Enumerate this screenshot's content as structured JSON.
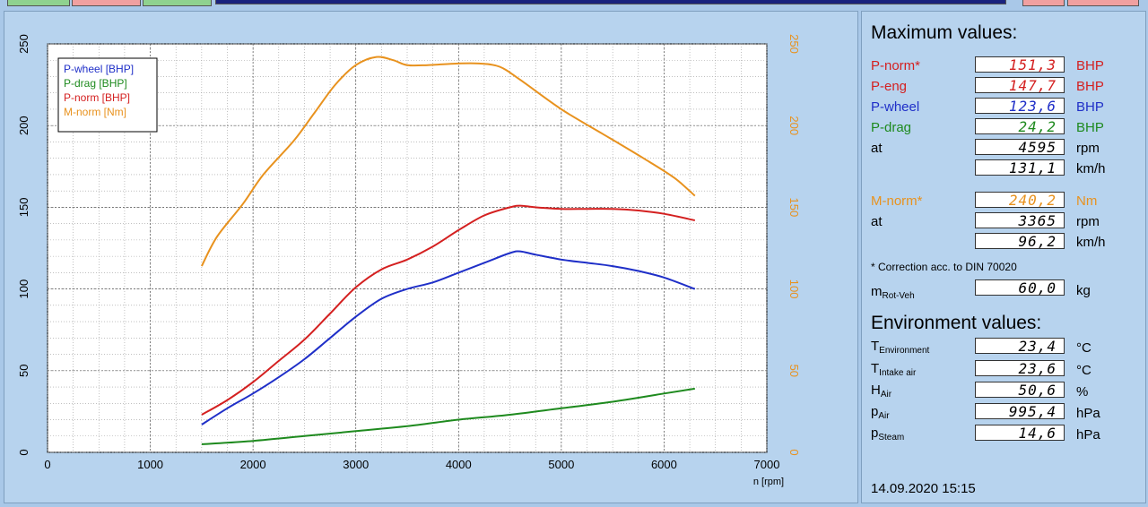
{
  "colors": {
    "wheel": "#1f2fc8",
    "drag": "#1e8a1e",
    "norm": "#d42020",
    "torque": "#e8921e"
  },
  "chart_data": {
    "type": "line",
    "xlabel": "n [rpm]",
    "xlim": [
      0,
      7000
    ],
    "ylim": [
      0,
      250
    ],
    "xticks": [
      "0",
      "1000",
      "2000",
      "3000",
      "4000",
      "5000",
      "6000",
      "7000"
    ],
    "yticks_left": [
      "0",
      "50",
      "100",
      "150",
      "200",
      "250"
    ],
    "yticks_right": [
      "0",
      "50",
      "100",
      "150",
      "200",
      "250"
    ],
    "grid": true,
    "legend_position": "top-left",
    "series": [
      {
        "name": "P-wheel [BHP]",
        "color": "#1f2fc8",
        "x": [
          1500,
          1750,
          2000,
          2250,
          2500,
          2750,
          3000,
          3250,
          3500,
          3750,
          4000,
          4250,
          4500,
          4600,
          4750,
          5000,
          5250,
          5500,
          5750,
          6000,
          6300
        ],
        "y": [
          17,
          27,
          36,
          46,
          57,
          70,
          83,
          94,
          100,
          104,
          110,
          116,
          122,
          123,
          121,
          118,
          116,
          114,
          111,
          107,
          100
        ]
      },
      {
        "name": "P-drag [BHP]",
        "color": "#1e8a1e",
        "x": [
          1500,
          2000,
          2500,
          3000,
          3500,
          4000,
          4500,
          5000,
          5500,
          6000,
          6300
        ],
        "y": [
          5,
          7,
          10,
          13,
          16,
          20,
          23,
          27,
          31,
          36,
          39
        ]
      },
      {
        "name": "P-norm [BHP]",
        "color": "#d42020",
        "x": [
          1500,
          1750,
          2000,
          2250,
          2500,
          2750,
          3000,
          3250,
          3500,
          3750,
          4000,
          4250,
          4500,
          4600,
          4750,
          5000,
          5250,
          5500,
          5750,
          6000,
          6300
        ],
        "y": [
          23,
          32,
          43,
          56,
          69,
          85,
          101,
          112,
          118,
          126,
          136,
          145,
          150,
          151,
          150,
          149,
          149,
          149,
          148,
          146,
          142
        ]
      },
      {
        "name": "M-norm [Nm]",
        "color": "#e8921e",
        "x": [
          1500,
          1650,
          1900,
          2100,
          2400,
          2600,
          2800,
          3000,
          3200,
          3365,
          3500,
          3700,
          4000,
          4200,
          4400,
          4600,
          5000,
          5400,
          5800,
          6100,
          6300
        ],
        "y": [
          114,
          132,
          152,
          170,
          191,
          208,
          225,
          237,
          242,
          240,
          237,
          237,
          238,
          238,
          236,
          228,
          210,
          195,
          180,
          168,
          157
        ]
      }
    ]
  },
  "panel": {
    "title": "Maximum values:",
    "rows": [
      {
        "label": "P-norm*",
        "value": "151,3",
        "unit": "BHP",
        "color": "#d42020"
      },
      {
        "label": "P-eng",
        "value": "147,7",
        "unit": "BHP",
        "color": "#d42020"
      },
      {
        "label": "P-wheel",
        "value": "123,6",
        "unit": "BHP",
        "color": "#1f2fc8"
      },
      {
        "label": "P-drag",
        "value": "24,2",
        "unit": "BHP",
        "color": "#1e8a1e"
      },
      {
        "label": "at",
        "value": "4595",
        "unit": "rpm",
        "color": "#000000"
      },
      {
        "label": "",
        "value": "131,1",
        "unit": "km/h",
        "color": "#000000"
      },
      {
        "label": "M-norm*",
        "value": "240,2",
        "unit": "Nm",
        "color": "#e8921e"
      },
      {
        "label": "at",
        "value": "3365",
        "unit": "rpm",
        "color": "#000000"
      },
      {
        "label": "",
        "value": "96,2",
        "unit": "km/h",
        "color": "#000000"
      }
    ],
    "correction_note": "* Correction acc. to DIN 70020",
    "mrot": {
      "label": "m",
      "sub": "Rot-Veh",
      "value": "60,0",
      "unit": "kg"
    },
    "env_title": "Environment values:",
    "env_rows": [
      {
        "label": "T",
        "sub": "Environment",
        "value": "23,4",
        "unit": "°C"
      },
      {
        "label": "T",
        "sub": "Intake air",
        "value": "23,6",
        "unit": "°C"
      },
      {
        "label": "H",
        "sub": "Air",
        "value": "50,6",
        "unit": "%"
      },
      {
        "label": "p",
        "sub": "Air",
        "value": "995,4",
        "unit": "hPa"
      },
      {
        "label": "p",
        "sub": "Steam",
        "value": "14,6",
        "unit": "hPa"
      }
    ],
    "timestamp": "14.09.2020   15:15"
  }
}
